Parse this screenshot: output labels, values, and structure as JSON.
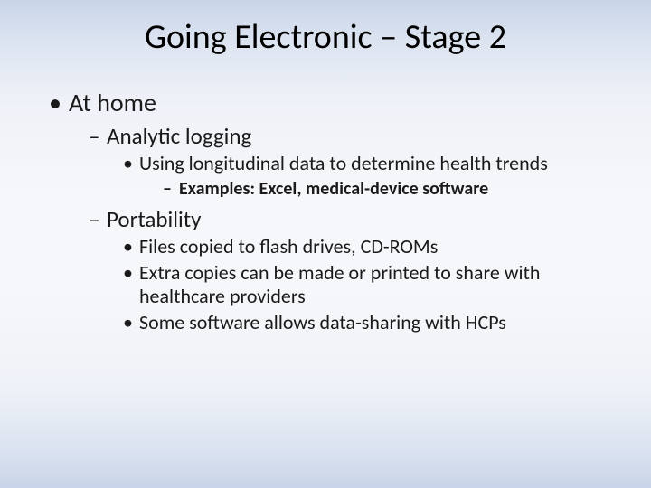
{
  "slide": {
    "title": "Going Electronic – Stage 2",
    "title_fontsize": 38,
    "title_color": "#000000",
    "background_gradient": [
      "#c8d4e8",
      "#f6f7fa",
      "#c8d4e8"
    ],
    "text_color": "#1a1a1a",
    "font_family": "Candara",
    "bullets": {
      "lvl1_char": "•",
      "lvl2_char": "–",
      "lvl3_char": "•",
      "lvl4_char": "–"
    },
    "lvl1": {
      "fontsize": 28,
      "text": "At home"
    },
    "sub": [
      {
        "lvl2": {
          "fontsize": 25,
          "text": "Analytic logging"
        },
        "lvl3_fontsize": 22,
        "children": [
          {
            "text": "Using longitudinal data to determine health trends",
            "lvl4": {
              "fontsize": 20,
              "bold": true,
              "text": "Examples: Excel, medical-device software"
            }
          }
        ]
      },
      {
        "lvl2": {
          "fontsize": 25,
          "text": "Portability"
        },
        "lvl3_fontsize": 22,
        "children": [
          {
            "text": "Files copied to flash drives, CD-ROMs"
          },
          {
            "text": "Extra copies can be made or printed to share with healthcare providers"
          },
          {
            "text": "Some software allows data-sharing with HCPs"
          }
        ]
      }
    ]
  }
}
